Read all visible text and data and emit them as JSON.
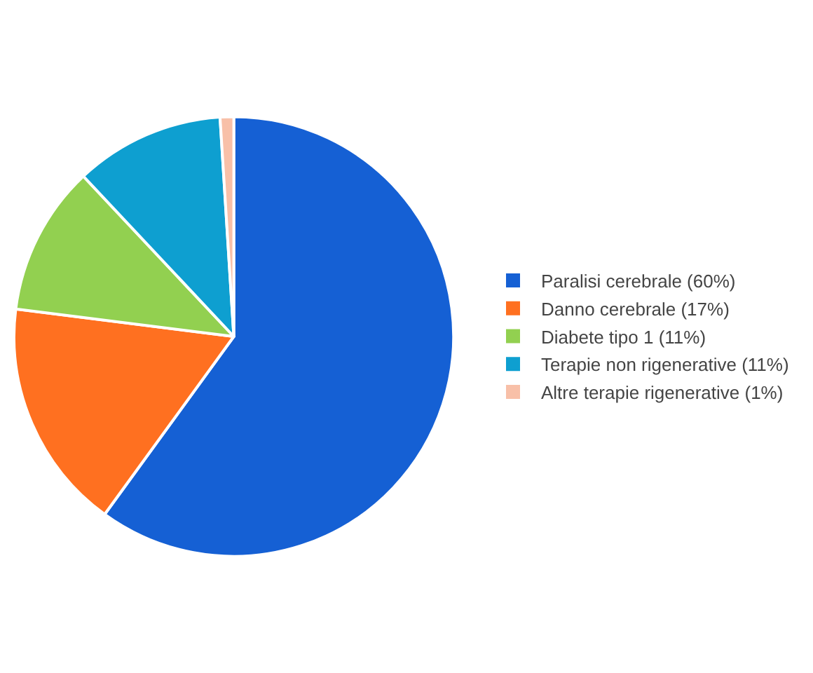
{
  "chart_data": {
    "type": "pie",
    "categories": [
      "Paralisi cerebrale (60%)",
      "Danno cerebrale (17%)",
      "Diabete tipo 1 (11%)",
      "Terapie non rigenerative (11%)",
      "Altre terapie rigenerative (1%)"
    ],
    "values": [
      60,
      17,
      11,
      11,
      1
    ],
    "colors": [
      "#1560d4",
      "#ff7020",
      "#92d050",
      "#0e9fd0",
      "#f8c0a8"
    ],
    "legend": "right"
  }
}
